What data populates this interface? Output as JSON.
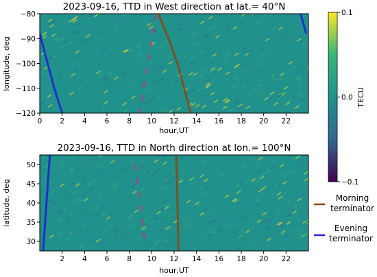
{
  "colors": {
    "tec_scale": [
      "#440154",
      "#31688e",
      "#21918c",
      "#35b779",
      "#fde725"
    ],
    "morning_terminator": "#8b4513",
    "evening_terminator": "#1f1fd6",
    "dashed_segment": "#e0208a"
  },
  "legend": {
    "morning_line1": "Morning",
    "morning_line2": "terminator",
    "evening_line1": "Evening",
    "evening_line2": "terminator"
  },
  "chart_data": [
    {
      "type": "heatmap",
      "title": "2023-09-16, TTD in West direction at lat.= 40°N",
      "xlabel": "hour,UT",
      "ylabel": "longitude, deg",
      "xlim": [
        0,
        24
      ],
      "ylim": [
        -120,
        -80
      ],
      "xticks": [
        0,
        2,
        4,
        6,
        8,
        10,
        12,
        14,
        16,
        18,
        20,
        22
      ],
      "yticks": [
        -80,
        -90,
        -100,
        -110,
        -120
      ],
      "series": [
        {
          "name": "Morning terminator",
          "color": "morning_terminator",
          "points": [
            [
              10.6,
              -80
            ],
            [
              11.5,
              -90
            ],
            [
              12.3,
              -100
            ],
            [
              12.9,
              -110
            ],
            [
              13.5,
              -120
            ]
          ]
        },
        {
          "name": "Evening terminator",
          "color": "evening_terminator",
          "points": [
            [
              0.0,
              -88
            ],
            [
              0.7,
              -100
            ],
            [
              1.3,
              -110
            ],
            [
              2.0,
              -120
            ]
          ]
        },
        {
          "name": "Evening terminator",
          "color": "evening_terminator",
          "points": [
            [
              23.3,
              -80
            ],
            [
              23.8,
              -88
            ]
          ]
        }
      ],
      "dashed": [
        [
          10.4,
          -80
        ],
        [
          8.9,
          -120
        ]
      ]
    },
    {
      "type": "heatmap",
      "title": "2023-09-16, TTD in North direction at lon.= 100°N",
      "xlabel": "hour,UT",
      "ylabel": "latitude, deg",
      "xlim": [
        0,
        24
      ],
      "ylim": [
        27.5,
        52.5
      ],
      "xticks": [
        2,
        4,
        6,
        8,
        10,
        12,
        14,
        16,
        18,
        20,
        22
      ],
      "yticks": [
        30,
        35,
        40,
        45,
        50
      ],
      "series": [
        {
          "name": "Morning terminator",
          "color": "morning_terminator",
          "points": [
            [
              12.2,
              52.5
            ],
            [
              12.4,
              27.5
            ]
          ]
        },
        {
          "name": "Evening terminator",
          "color": "evening_terminator",
          "points": [
            [
              0.9,
              52.5
            ],
            [
              0.6,
              40
            ],
            [
              0.3,
              27.5
            ]
          ]
        }
      ],
      "dashed": [
        [
          8.5,
          50
        ],
        [
          9.4,
          30
        ]
      ]
    },
    {
      "type": "colorbar",
      "label": "TECU",
      "range": [
        -0.1,
        0.1
      ],
      "ticks": [
        0.1,
        0.0,
        -0.1
      ],
      "tick_labels": [
        "0.1",
        "0.0",
        "−0.1"
      ]
    }
  ]
}
